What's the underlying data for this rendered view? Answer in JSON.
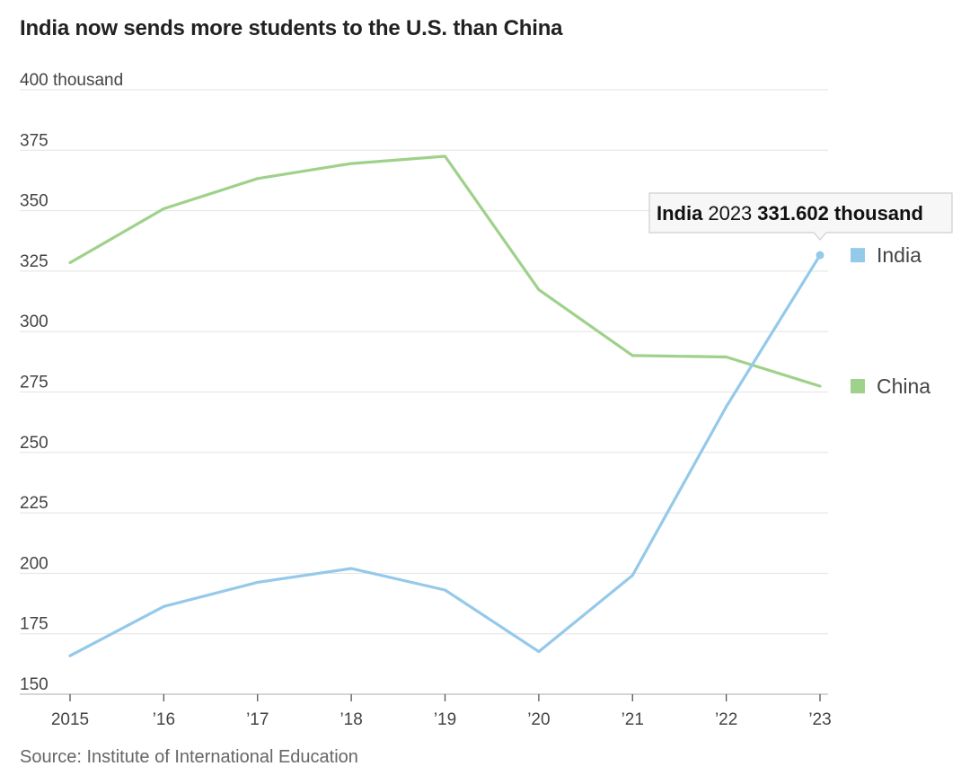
{
  "chart_data": {
    "type": "line",
    "title": "India now sends more students to the U.S. than China",
    "source": "Source: Institute of International Education",
    "x": [
      2015,
      2016,
      2017,
      2018,
      2019,
      2020,
      2021,
      2022,
      2023
    ],
    "x_tick_labels": [
      "2015",
      "’16",
      "’17",
      "’18",
      "’19",
      "’20",
      "’21",
      "’22",
      "’23"
    ],
    "y_ticks": [
      150,
      175,
      200,
      225,
      250,
      275,
      300,
      325,
      350,
      375,
      400
    ],
    "y_tick_labels": [
      "150",
      "175",
      "200",
      "225",
      "250",
      "275",
      "300",
      "325",
      "350",
      "375",
      "400 thousand"
    ],
    "ylim": [
      150,
      400
    ],
    "grid": true,
    "series": [
      {
        "name": "China",
        "color": "#9fd18b",
        "values": [
          328.5,
          350.8,
          363.3,
          369.5,
          372.5,
          317.3,
          290.1,
          289.5,
          277.4
        ]
      },
      {
        "name": "India",
        "color": "#95c9ea",
        "values": [
          165.9,
          186.3,
          196.3,
          202.0,
          193.1,
          167.6,
          199.2,
          268.9,
          331.602
        ]
      }
    ],
    "tooltip": {
      "series": "India",
      "year": "2023",
      "value": "331.602 thousand"
    }
  }
}
